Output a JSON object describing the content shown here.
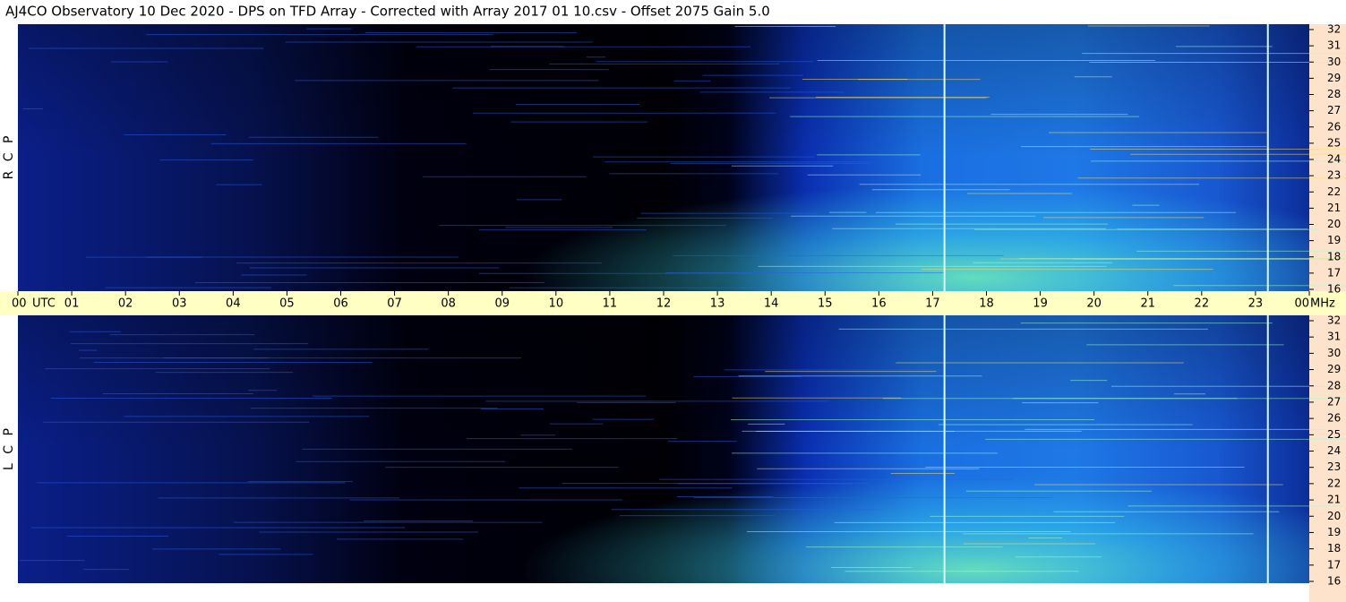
{
  "chart_data": {
    "type": "spectrogram",
    "title": "AJ4CO Observatory  10 Dec 2020  -  DPS on TFD Array  -  Corrected with Array 2017 01 10.csv  -  Offset 2075  Gain 5.0",
    "x_unit": "UTC",
    "y_unit": "MHz",
    "xlim": [
      0,
      24
    ],
    "xticks": [
      {
        "value": 0,
        "label": "00"
      },
      {
        "value": 1,
        "label": "01"
      },
      {
        "value": 2,
        "label": "02"
      },
      {
        "value": 3,
        "label": "03"
      },
      {
        "value": 4,
        "label": "04"
      },
      {
        "value": 5,
        "label": "05"
      },
      {
        "value": 6,
        "label": "06"
      },
      {
        "value": 7,
        "label": "07"
      },
      {
        "value": 8,
        "label": "08"
      },
      {
        "value": 9,
        "label": "09"
      },
      10,
      11,
      12,
      13,
      14,
      15,
      16,
      17,
      18,
      19,
      20,
      21,
      22,
      23,
      {
        "value": 24,
        "label": "00"
      }
    ],
    "panels": [
      {
        "label": "R C P",
        "ylim": [
          16,
          32
        ],
        "yticks": [
          16,
          17,
          18,
          19,
          20,
          21,
          22,
          23,
          24,
          25,
          26,
          27,
          28,
          29,
          30,
          31,
          32
        ]
      },
      {
        "label": "L C P",
        "ylim": [
          16,
          32
        ],
        "yticks": [
          16,
          17,
          18,
          19,
          20,
          21,
          22,
          23,
          24,
          25,
          26,
          27,
          28,
          29,
          30,
          31,
          32
        ]
      }
    ]
  }
}
